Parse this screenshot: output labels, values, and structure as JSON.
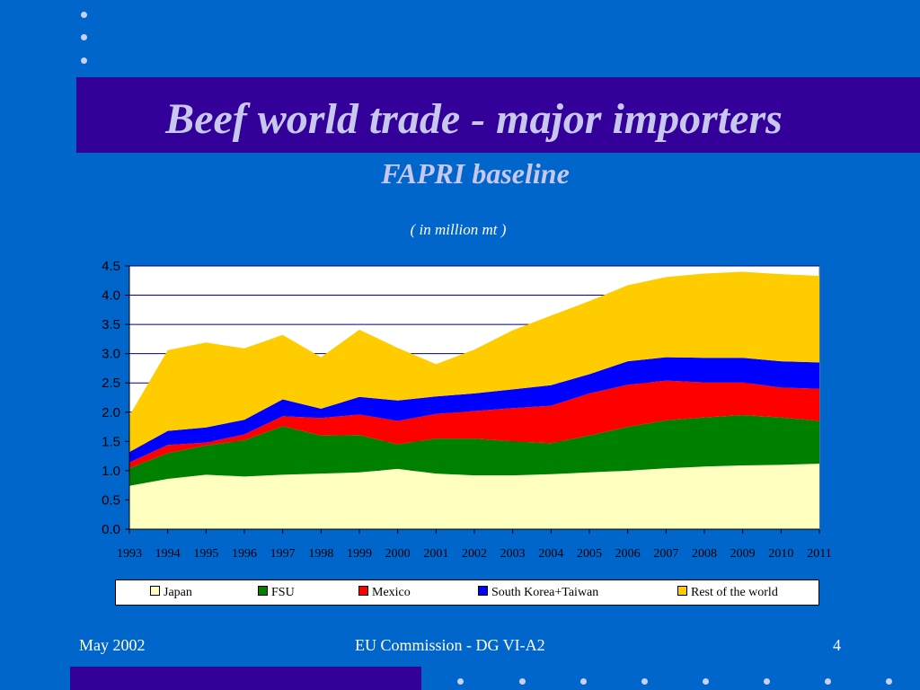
{
  "slide": {
    "title": "Beef world trade - major importers",
    "subtitle": "FAPRI baseline",
    "unit_note": "( in million mt )"
  },
  "footer": {
    "date": "May 2002",
    "source": "EU Commission - DG VI-A2",
    "page": "4"
  },
  "colors": {
    "background": "#0066cc",
    "title_band": "#330099",
    "title_text": "#c8c8ee"
  },
  "chart_data": {
    "type": "area",
    "stacked": true,
    "title": "",
    "xlabel": "",
    "ylabel": "",
    "ylim": [
      0,
      4.5
    ],
    "yticks": [
      "0.0",
      "0.5",
      "1.0",
      "1.5",
      "2.0",
      "2.5",
      "3.0",
      "3.5",
      "4.0",
      "4.5"
    ],
    "grid": "horizontal",
    "legend_position": "bottom",
    "categories": [
      "1993",
      "1994",
      "1995",
      "1996",
      "1997",
      "1998",
      "1999",
      "2000",
      "2001",
      "2002",
      "2003",
      "2004",
      "2005",
      "2006",
      "2007",
      "2008",
      "2009",
      "2010",
      "2011"
    ],
    "series": [
      {
        "name": "Japan",
        "color": "#ffffc0",
        "values": [
          0.74,
          0.86,
          0.93,
          0.9,
          0.93,
          0.95,
          0.97,
          1.03,
          0.95,
          0.92,
          0.92,
          0.94,
          0.97,
          1.0,
          1.04,
          1.07,
          1.09,
          1.1,
          1.12
        ]
      },
      {
        "name": "FSU",
        "color": "#008000",
        "values": [
          0.3,
          0.44,
          0.5,
          0.62,
          0.83,
          0.65,
          0.64,
          0.42,
          0.6,
          0.63,
          0.58,
          0.53,
          0.63,
          0.75,
          0.82,
          0.84,
          0.86,
          0.81,
          0.73
        ]
      },
      {
        "name": "Mexico",
        "color": "#ff0000",
        "values": [
          0.1,
          0.14,
          0.05,
          0.1,
          0.17,
          0.3,
          0.35,
          0.4,
          0.42,
          0.47,
          0.57,
          0.64,
          0.72,
          0.72,
          0.68,
          0.6,
          0.56,
          0.51,
          0.55
        ]
      },
      {
        "name": "South Korea+Taiwan",
        "color": "#0000ff",
        "values": [
          0.18,
          0.24,
          0.26,
          0.25,
          0.29,
          0.16,
          0.3,
          0.35,
          0.3,
          0.3,
          0.32,
          0.35,
          0.33,
          0.4,
          0.4,
          0.42,
          0.42,
          0.45,
          0.45
        ]
      },
      {
        "name": "Rest of the world",
        "color": "#ffcc00",
        "values": [
          0.62,
          1.38,
          1.45,
          1.22,
          1.1,
          0.88,
          1.15,
          0.9,
          0.55,
          0.75,
          1.01,
          1.19,
          1.25,
          1.3,
          1.37,
          1.44,
          1.47,
          1.49,
          1.48
        ]
      }
    ]
  }
}
